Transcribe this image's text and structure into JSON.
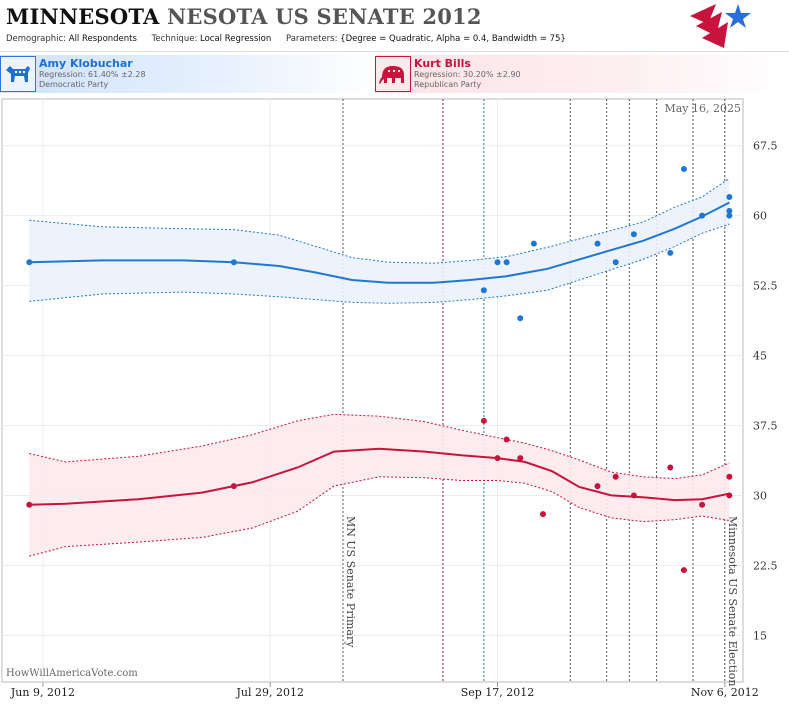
{
  "header": {
    "title_state": "MINNESOTA",
    "title_rest": "NESOTA US SENATE 2012",
    "demographic_label": "Demographic:",
    "demographic_value": "All Respondents",
    "technique_label": "Technique:",
    "technique_value": "Local Regression",
    "parameters_label": "Parameters:",
    "parameters_value": "{Degree = Quadratic, Alpha = 0.4, Bandwidth = 75}"
  },
  "candidates": {
    "dem": {
      "name": "Amy Klobuchar",
      "regression": "Regression: 61.40% ±2.28",
      "party": "Democratic Party",
      "icon": "donkey-icon"
    },
    "rep": {
      "name": "Kurt Bills",
      "regression": "Regression: 30.20% ±2.90",
      "party": "Republican Party",
      "icon": "elephant-icon"
    }
  },
  "colors": {
    "dem": "#1f77d4",
    "rep": "#c8143c",
    "dem_band": "#eaf2fc",
    "rep_band": "#fceaee"
  },
  "watermark": "HowWillAmericaVote.com",
  "chart_data": {
    "type": "line",
    "date_stamp": "May 16, 2025",
    "x_range": [
      "2012-05-31",
      "2012-11-10"
    ],
    "ylim": [
      10,
      72.5
    ],
    "y_ticks": [
      "15",
      "22.5",
      "30",
      "37.5",
      "45",
      "52.5",
      "60",
      "67.5"
    ],
    "x_ticks": [
      {
        "date": "2012-06-09",
        "label": "Jun 9, 2012"
      },
      {
        "date": "2012-07-29",
        "label": "Jul 29, 2012"
      },
      {
        "date": "2012-09-17",
        "label": "Sep 17, 2012"
      },
      {
        "date": "2012-11-06",
        "label": "Nov 6, 2012"
      }
    ],
    "events": [
      {
        "date": "2012-08-14",
        "label": "MN US Senate Primary",
        "color": "#555"
      },
      {
        "date": "2012-09-05",
        "label": "",
        "color": "#a0144a"
      },
      {
        "date": "2012-09-14",
        "label": "",
        "color": "#2a7a95"
      },
      {
        "date": "2012-10-03",
        "label": "",
        "color": "#555"
      },
      {
        "date": "2012-10-11",
        "label": "",
        "color": "#555"
      },
      {
        "date": "2012-10-16",
        "label": "",
        "color": "#555"
      },
      {
        "date": "2012-10-22",
        "label": "",
        "color": "#555"
      },
      {
        "date": "2012-10-30",
        "label": "",
        "color": "#555"
      },
      {
        "date": "2012-11-06",
        "label": "Minnesota US Senate Election",
        "color": "#555"
      }
    ],
    "series": [
      {
        "name": "Amy Klobuchar",
        "party": "dem",
        "points": [
          [
            "2012-06-06",
            55
          ],
          [
            "2012-07-21",
            55
          ],
          [
            "2012-09-14",
            52
          ],
          [
            "2012-09-17",
            55
          ],
          [
            "2012-09-19",
            55
          ],
          [
            "2012-09-22",
            49
          ],
          [
            "2012-09-25",
            57
          ],
          [
            "2012-10-09",
            57
          ],
          [
            "2012-10-13",
            55
          ],
          [
            "2012-10-17",
            58
          ],
          [
            "2012-10-25",
            56
          ],
          [
            "2012-10-28",
            65
          ],
          [
            "2012-11-01",
            60
          ],
          [
            "2012-11-07",
            62
          ],
          [
            "2012-11-07",
            60
          ],
          [
            "2012-11-07",
            60.5
          ]
        ],
        "fit": [
          [
            "2012-06-06",
            55.0
          ],
          [
            "2012-06-22",
            55.2
          ],
          [
            "2012-07-10",
            55.2
          ],
          [
            "2012-07-21",
            55.0
          ],
          [
            "2012-07-31",
            54.6
          ],
          [
            "2012-08-08",
            53.9
          ],
          [
            "2012-08-16",
            53.1
          ],
          [
            "2012-08-24",
            52.8
          ],
          [
            "2012-09-03",
            52.8
          ],
          [
            "2012-09-11",
            53.1
          ],
          [
            "2012-09-19",
            53.5
          ],
          [
            "2012-09-28",
            54.3
          ],
          [
            "2012-10-05",
            55.3
          ],
          [
            "2012-10-12",
            56.3
          ],
          [
            "2012-10-19",
            57.3
          ],
          [
            "2012-10-26",
            58.6
          ],
          [
            "2012-11-01",
            59.9
          ],
          [
            "2012-11-07",
            61.4
          ]
        ],
        "upper": [
          [
            "2012-06-06",
            59.5
          ],
          [
            "2012-06-22",
            58.8
          ],
          [
            "2012-07-10",
            58.6
          ],
          [
            "2012-07-21",
            58.5
          ],
          [
            "2012-07-31",
            57.9
          ],
          [
            "2012-08-08",
            56.7
          ],
          [
            "2012-08-16",
            55.5
          ],
          [
            "2012-08-24",
            55.0
          ],
          [
            "2012-09-03",
            54.9
          ],
          [
            "2012-09-11",
            55.2
          ],
          [
            "2012-09-19",
            55.6
          ],
          [
            "2012-09-28",
            56.6
          ],
          [
            "2012-10-05",
            57.5
          ],
          [
            "2012-10-12",
            58.4
          ],
          [
            "2012-10-19",
            59.3
          ],
          [
            "2012-10-26",
            60.9
          ],
          [
            "2012-11-01",
            62.0
          ],
          [
            "2012-11-07",
            64.0
          ]
        ],
        "lower": [
          [
            "2012-06-06",
            50.8
          ],
          [
            "2012-06-22",
            51.6
          ],
          [
            "2012-07-10",
            51.8
          ],
          [
            "2012-07-21",
            51.6
          ],
          [
            "2012-07-31",
            51.3
          ],
          [
            "2012-08-08",
            51.0
          ],
          [
            "2012-08-16",
            50.7
          ],
          [
            "2012-08-24",
            50.6
          ],
          [
            "2012-09-03",
            50.7
          ],
          [
            "2012-09-11",
            51.0
          ],
          [
            "2012-09-19",
            51.4
          ],
          [
            "2012-09-28",
            52.0
          ],
          [
            "2012-10-05",
            53.1
          ],
          [
            "2012-10-12",
            54.2
          ],
          [
            "2012-10-19",
            55.3
          ],
          [
            "2012-10-26",
            56.7
          ],
          [
            "2012-11-01",
            58.1
          ],
          [
            "2012-11-07",
            59.1
          ]
        ]
      },
      {
        "name": "Kurt Bills",
        "party": "rep",
        "points": [
          [
            "2012-06-06",
            29
          ],
          [
            "2012-07-21",
            31
          ],
          [
            "2012-09-14",
            38
          ],
          [
            "2012-09-17",
            34
          ],
          [
            "2012-09-19",
            36
          ],
          [
            "2012-09-22",
            34
          ],
          [
            "2012-09-27",
            28
          ],
          [
            "2012-10-09",
            31
          ],
          [
            "2012-10-13",
            32
          ],
          [
            "2012-10-17",
            30
          ],
          [
            "2012-10-25",
            33
          ],
          [
            "2012-10-28",
            22
          ],
          [
            "2012-11-01",
            29
          ],
          [
            "2012-11-07",
            32
          ],
          [
            "2012-11-07",
            30
          ]
        ],
        "fit": [
          [
            "2012-06-06",
            29.0
          ],
          [
            "2012-06-14",
            29.1
          ],
          [
            "2012-06-30",
            29.6
          ],
          [
            "2012-07-14",
            30.3
          ],
          [
            "2012-07-25",
            31.4
          ],
          [
            "2012-08-04",
            33.0
          ],
          [
            "2012-08-12",
            34.7
          ],
          [
            "2012-08-22",
            35.0
          ],
          [
            "2012-09-01",
            34.7
          ],
          [
            "2012-09-09",
            34.3
          ],
          [
            "2012-09-17",
            34.0
          ],
          [
            "2012-09-23",
            33.6
          ],
          [
            "2012-09-29",
            32.6
          ],
          [
            "2012-10-05",
            30.9
          ],
          [
            "2012-10-12",
            30.0
          ],
          [
            "2012-10-19",
            29.8
          ],
          [
            "2012-10-26",
            29.5
          ],
          [
            "2012-11-01",
            29.6
          ],
          [
            "2012-11-07",
            30.2
          ]
        ],
        "upper": [
          [
            "2012-06-06",
            34.5
          ],
          [
            "2012-06-14",
            33.6
          ],
          [
            "2012-06-30",
            34.2
          ],
          [
            "2012-07-14",
            35.3
          ],
          [
            "2012-07-25",
            36.5
          ],
          [
            "2012-08-04",
            38.0
          ],
          [
            "2012-08-12",
            38.7
          ],
          [
            "2012-08-22",
            38.5
          ],
          [
            "2012-09-01",
            37.9
          ],
          [
            "2012-09-09",
            37.0
          ],
          [
            "2012-09-17",
            36.2
          ],
          [
            "2012-09-23",
            35.6
          ],
          [
            "2012-09-29",
            34.8
          ],
          [
            "2012-10-05",
            33.8
          ],
          [
            "2012-10-12",
            32.5
          ],
          [
            "2012-10-19",
            32.0
          ],
          [
            "2012-10-26",
            31.8
          ],
          [
            "2012-11-01",
            32.2
          ],
          [
            "2012-11-07",
            33.5
          ]
        ],
        "lower": [
          [
            "2012-06-06",
            23.5
          ],
          [
            "2012-06-14",
            24.5
          ],
          [
            "2012-06-30",
            25.0
          ],
          [
            "2012-07-14",
            25.5
          ],
          [
            "2012-07-25",
            26.5
          ],
          [
            "2012-08-04",
            28.3
          ],
          [
            "2012-08-12",
            31.0
          ],
          [
            "2012-08-22",
            32.0
          ],
          [
            "2012-09-01",
            31.9
          ],
          [
            "2012-09-09",
            31.6
          ],
          [
            "2012-09-17",
            31.6
          ],
          [
            "2012-09-23",
            31.3
          ],
          [
            "2012-09-29",
            30.4
          ],
          [
            "2012-10-05",
            28.7
          ],
          [
            "2012-10-12",
            27.6
          ],
          [
            "2012-10-19",
            27.2
          ],
          [
            "2012-10-26",
            27.4
          ],
          [
            "2012-11-01",
            27.8
          ],
          [
            "2012-11-07",
            27.3
          ]
        ]
      }
    ]
  }
}
